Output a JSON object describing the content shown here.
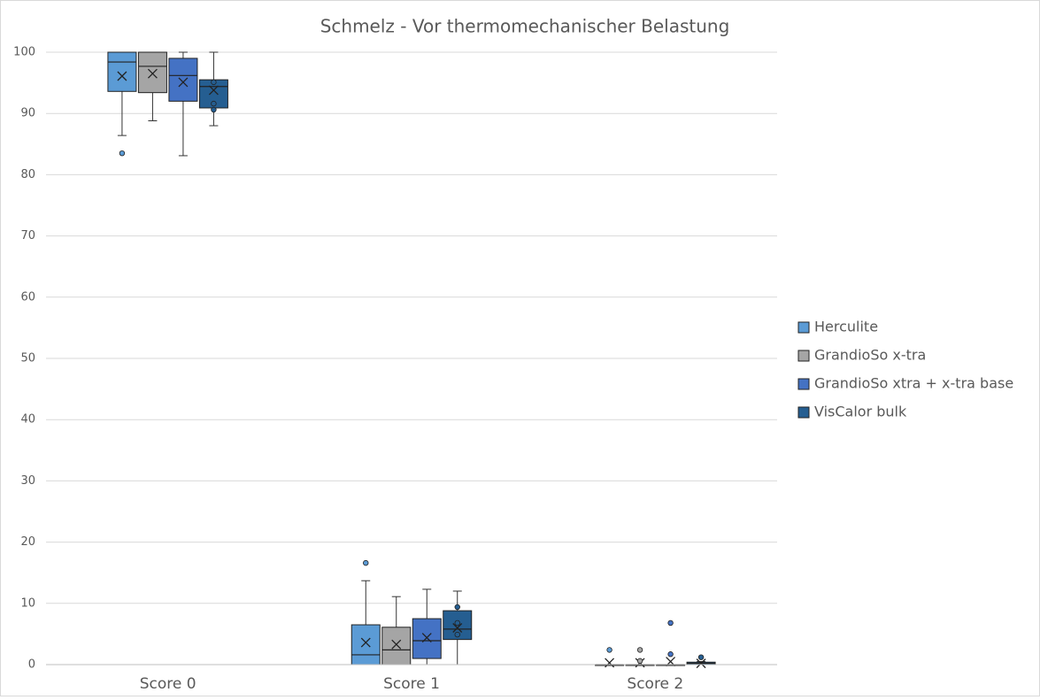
{
  "chart_data": {
    "type": "box",
    "title": "Schmelz -  Vor thermomechanischer Belastung",
    "categories": [
      "Score 0",
      "Score 1",
      "Score 2"
    ],
    "ylim": [
      0,
      100
    ],
    "yticks": [
      0,
      10,
      20,
      30,
      40,
      50,
      60,
      70,
      80,
      90,
      100
    ],
    "grid": true,
    "legend": "right",
    "series": [
      {
        "name": "Herculite",
        "color": "#5b9bd5",
        "min": [
          86.4,
          0,
          0
        ],
        "q1": [
          93.6,
          0,
          0
        ],
        "median": [
          98.4,
          1.6,
          0
        ],
        "q3": [
          100,
          6.5,
          0
        ],
        "max": [
          100,
          13.7,
          0
        ],
        "mean": [
          96.1,
          3.6,
          0.3
        ],
        "outliers": [
          [
            83.5
          ],
          [
            16.6
          ],
          [
            2.4
          ]
        ]
      },
      {
        "name": "GrandioSo x-tra",
        "color": "#a5a5a5",
        "min": [
          88.8,
          0,
          0
        ],
        "q1": [
          93.4,
          0,
          0
        ],
        "median": [
          97.7,
          2.4,
          0
        ],
        "q3": [
          100,
          6.1,
          0
        ],
        "max": [
          100,
          11.1,
          0
        ],
        "mean": [
          96.5,
          3.3,
          0.3
        ],
        "outliers": [
          [],
          [],
          [
            2.4,
            0.6
          ]
        ]
      },
      {
        "name": "GrandioSo xtra + x-tra base",
        "color": "#4472c4",
        "min": [
          83.1,
          0,
          0
        ],
        "q1": [
          92,
          1,
          0
        ],
        "median": [
          96.2,
          3.9,
          0
        ],
        "q3": [
          99,
          7.5,
          0
        ],
        "max": [
          100,
          12.3,
          0
        ],
        "mean": [
          95.1,
          4.4,
          0.5
        ],
        "outliers": [
          [],
          [],
          [
            6.8,
            1.7
          ]
        ]
      },
      {
        "name": "VisCalor bulk",
        "color": "#255e91",
        "min": [
          88,
          0,
          0
        ],
        "q1": [
          90.9,
          4.1,
          0
        ],
        "median": [
          94.4,
          5.8,
          0.2
        ],
        "q3": [
          95.5,
          8.8,
          0.4
        ],
        "max": [
          100,
          12,
          0.5
        ],
        "mean": [
          93.8,
          6,
          0.2
        ],
        "outliers": [
          [
            95.1,
            91.6,
            90.6
          ],
          [
            9.4,
            6.8,
            4.9
          ],
          [
            1.2
          ]
        ]
      }
    ]
  }
}
